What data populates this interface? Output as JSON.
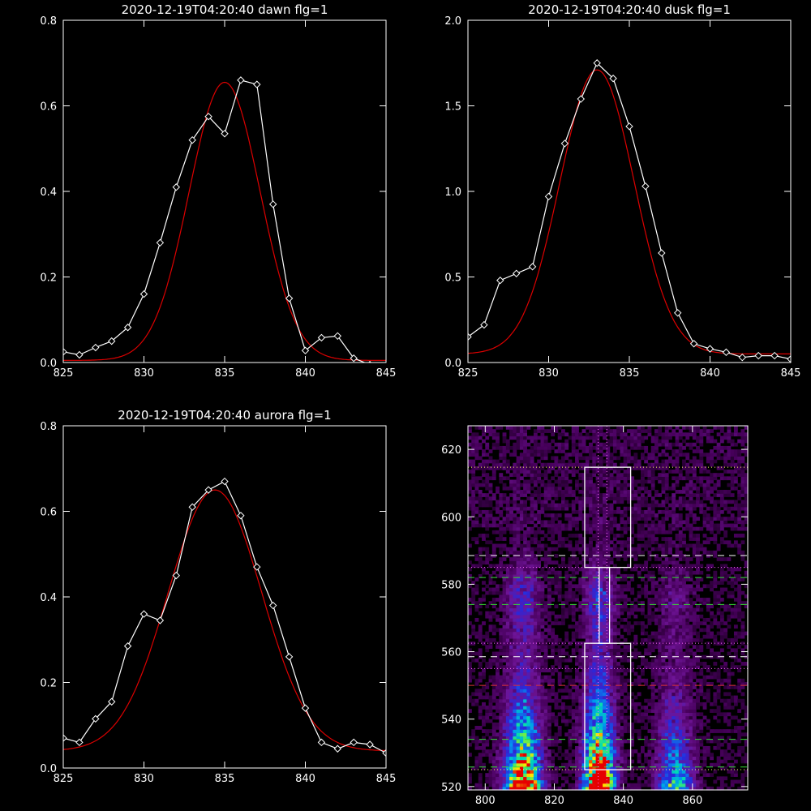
{
  "colors": {
    "background": "#000000",
    "axes": "#ffffff",
    "data_line": "#ffffff",
    "fit_line": "#dd0000",
    "green_dashed": "#33dd33",
    "red_dashed": "#dd3333",
    "white_dashed": "#ffffff",
    "magenta_dotted": "#ff66ff",
    "yellow_dotted": "#ffff66"
  },
  "chart_data": [
    {
      "type": "line",
      "title": "2020-12-19T04:20:40 dawn flg=1",
      "xlim": [
        825,
        845
      ],
      "ylim": [
        0,
        0.8
      ],
      "xticks": [
        825,
        830,
        835,
        840,
        845
      ],
      "yticks": [
        0.0,
        0.2,
        0.4,
        0.6,
        0.8
      ],
      "ytick_labels": [
        "0.0",
        "0.2",
        "0.4",
        "0.6",
        "0.8"
      ],
      "series": [
        {
          "x": [
            825,
            826,
            827,
            828,
            829,
            830,
            831,
            832,
            833,
            834,
            835,
            836,
            837,
            838,
            839,
            840,
            841,
            842,
            843,
            844,
            845
          ],
          "y": [
            0.025,
            0.018,
            0.035,
            0.05,
            0.082,
            0.16,
            0.28,
            0.41,
            0.52,
            0.575,
            0.535,
            0.66,
            0.65,
            0.37,
            0.15,
            0.028,
            0.058,
            0.062,
            0.01,
            -0.005,
            -0.015
          ]
        }
      ],
      "fit": {
        "amplitude": 0.65,
        "center": 835.0,
        "sigma": 2.2,
        "offset": 0.005
      }
    },
    {
      "type": "line",
      "title": "2020-12-19T04:20:40 dusk flg=1",
      "xlim": [
        825,
        845
      ],
      "ylim": [
        0,
        2.0
      ],
      "xticks": [
        825,
        830,
        835,
        840,
        845
      ],
      "yticks": [
        0.0,
        0.5,
        1.0,
        1.5,
        2.0
      ],
      "ytick_labels": [
        "0.0",
        "0.5",
        "1.0",
        "1.5",
        "2.0"
      ],
      "series": [
        {
          "x": [
            825,
            826,
            827,
            828,
            829,
            830,
            831,
            832,
            833,
            834,
            835,
            836,
            837,
            838,
            839,
            840,
            841,
            842,
            843,
            844,
            845
          ],
          "y": [
            0.15,
            0.22,
            0.48,
            0.52,
            0.56,
            0.97,
            1.28,
            1.54,
            1.75,
            1.66,
            1.38,
            1.03,
            0.64,
            0.29,
            0.11,
            0.08,
            0.06,
            0.03,
            0.04,
            0.04,
            0.02
          ]
        }
      ],
      "fit": {
        "amplitude": 1.66,
        "center": 833.0,
        "sigma": 2.3,
        "offset": 0.05
      }
    },
    {
      "type": "line",
      "title": "2020-12-19T04:20:40 aurora flg=1",
      "xlim": [
        825,
        845
      ],
      "ylim": [
        0,
        0.8
      ],
      "xticks": [
        825,
        830,
        835,
        840,
        845
      ],
      "yticks": [
        0.0,
        0.2,
        0.4,
        0.6,
        0.8
      ],
      "ytick_labels": [
        "0.0",
        "0.2",
        "0.4",
        "0.6",
        "0.8"
      ],
      "series": [
        {
          "x": [
            825,
            826,
            827,
            828,
            829,
            830,
            831,
            832,
            833,
            834,
            835,
            836,
            837,
            838,
            839,
            840,
            841,
            842,
            843,
            844,
            845
          ],
          "y": [
            0.07,
            0.06,
            0.115,
            0.155,
            0.285,
            0.36,
            0.345,
            0.45,
            0.61,
            0.65,
            0.67,
            0.59,
            0.47,
            0.38,
            0.26,
            0.14,
            0.06,
            0.045,
            0.06,
            0.055,
            0.035
          ]
        }
      ],
      "fit": {
        "amplitude": 0.61,
        "center": 834.4,
        "sigma": 2.9,
        "offset": 0.04
      }
    },
    {
      "type": "heatmap",
      "title": "",
      "xlim": [
        795,
        876
      ],
      "ylim": [
        519,
        627
      ],
      "xticks": [
        800,
        820,
        840,
        860
      ],
      "yticks": [
        520,
        540,
        560,
        580,
        600,
        620
      ],
      "columns": [
        {
          "center": 811,
          "width": 3.5,
          "strength": 0.85
        },
        {
          "center": 833,
          "width": 3.0,
          "strength": 1.0
        },
        {
          "center": 855,
          "width": 3.5,
          "strength": 0.45
        }
      ],
      "vertical_dotted_lines_x": [
        832.7,
        835.2
      ],
      "horizontal_lines": [
        {
          "y": 614.7,
          "style": "yellow-dotted"
        },
        {
          "y": 588.5,
          "style": "white-dashed"
        },
        {
          "y": 585.0,
          "style": "magenta-dotted"
        },
        {
          "y": 582.0,
          "style": "green-dashed"
        },
        {
          "y": 574.0,
          "style": "green-dashed"
        },
        {
          "y": 562.5,
          "style": "magenta-dotted"
        },
        {
          "y": 558.5,
          "style": "white-dashed"
        },
        {
          "y": 555.0,
          "style": "magenta-dotted"
        },
        {
          "y": 550.0,
          "style": "red-dashed"
        },
        {
          "y": 534.0,
          "style": "green-dashed"
        },
        {
          "y": 525.8,
          "style": "green-dashed"
        },
        {
          "y": 525.0,
          "style": "yellow-dotted"
        }
      ],
      "boxes": [
        {
          "x0": 828.8,
          "x1": 842.1,
          "y0": 585.0,
          "y1": 614.7
        },
        {
          "x0": 833.0,
          "x1": 836.0,
          "y0": 562.5,
          "y1": 585.0
        },
        {
          "x0": 828.8,
          "x1": 842.1,
          "y0": 525.0,
          "y1": 562.5
        }
      ]
    }
  ]
}
